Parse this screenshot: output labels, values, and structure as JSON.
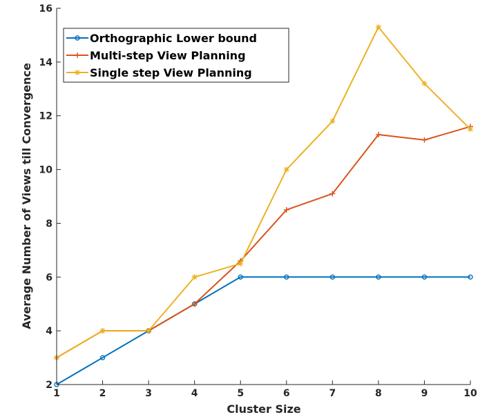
{
  "chart_data": {
    "type": "line",
    "title": "",
    "xlabel": "Cluster Size",
    "ylabel": "Average Number of Views till Convergence",
    "xlim": [
      1,
      10
    ],
    "ylim": [
      2,
      16
    ],
    "x_ticks": [
      1,
      2,
      3,
      4,
      5,
      6,
      7,
      8,
      9,
      10
    ],
    "y_ticks": [
      2,
      4,
      6,
      8,
      10,
      12,
      14,
      16
    ],
    "grid": false,
    "legend_position": "top-left",
    "x": [
      1,
      2,
      3,
      4,
      5,
      6,
      7,
      8,
      9,
      10
    ],
    "series": [
      {
        "name": "Orthographic Lower bound",
        "color": "#0072bd",
        "marker": "circle",
        "values": [
          2,
          3,
          4,
          5,
          6,
          6,
          6,
          6,
          6,
          6
        ]
      },
      {
        "name": "Multi-step View Planning",
        "color": "#d95319",
        "marker": "plus",
        "values": [
          3,
          4,
          4,
          5,
          6.6,
          8.5,
          9.1,
          11.3,
          11.1,
          11.6
        ]
      },
      {
        "name": "Single step View Planning",
        "color": "#edb120",
        "marker": "star",
        "values": [
          3,
          4,
          4,
          6,
          6.5,
          10,
          11.8,
          15.3,
          13.2,
          11.5
        ]
      }
    ]
  }
}
